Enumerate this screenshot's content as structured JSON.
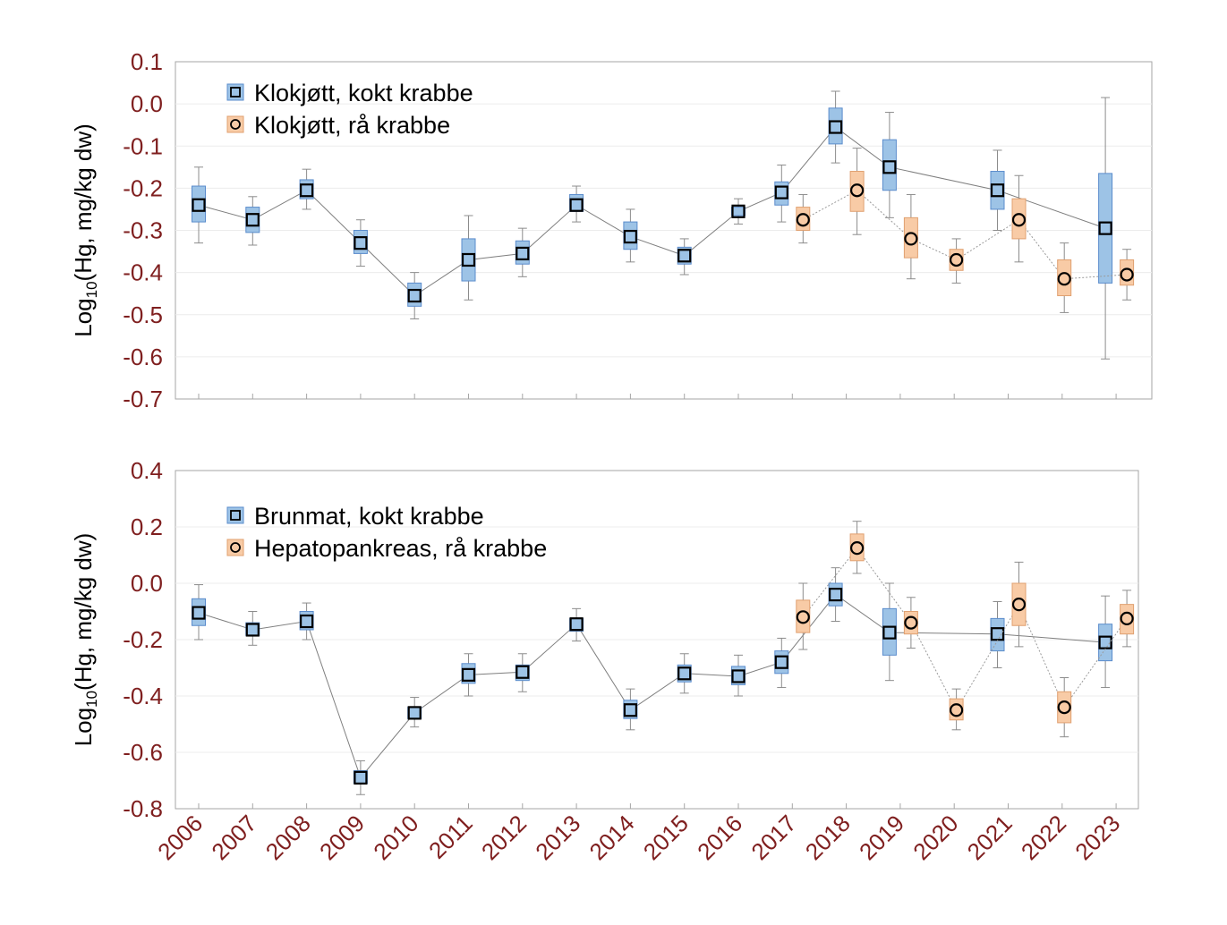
{
  "chart_data": [
    {
      "type": "box",
      "ylabel_main": "Log",
      "ylabel_sub": "10",
      "ylabel_rest": "(Hg, mg/kg dw)",
      "ylim": [
        -0.7,
        0.1
      ],
      "yticks": [
        "0.1",
        "0.0",
        "-0.1",
        "-0.2",
        "-0.3",
        "-0.4",
        "-0.5",
        "-0.6",
        "-0.7"
      ],
      "grid": true,
      "legend_placement": "top-left",
      "colors": {
        "box_blue": "#9dc3e6",
        "box_orange": "#f8cba6",
        "tick": "#7f1f1f"
      },
      "series": [
        {
          "name": "Klokjøtt, kokt krabbe",
          "marker": "square",
          "points": [
            {
              "year": 2006,
              "median": -0.24,
              "q1": -0.28,
              "q3": -0.195,
              "min": -0.33,
              "max": -0.15
            },
            {
              "year": 2007,
              "median": -0.275,
              "q1": -0.305,
              "q3": -0.245,
              "min": -0.335,
              "max": -0.22
            },
            {
              "year": 2008,
              "median": -0.205,
              "q1": -0.225,
              "q3": -0.18,
              "min": -0.25,
              "max": -0.155
            },
            {
              "year": 2009,
              "median": -0.33,
              "q1": -0.355,
              "q3": -0.3,
              "min": -0.385,
              "max": -0.275
            },
            {
              "year": 2010,
              "median": -0.455,
              "q1": -0.48,
              "q3": -0.425,
              "min": -0.51,
              "max": -0.4
            },
            {
              "year": 2011,
              "median": -0.37,
              "q1": -0.42,
              "q3": -0.32,
              "min": -0.465,
              "max": -0.265
            },
            {
              "year": 2012,
              "median": -0.355,
              "q1": -0.38,
              "q3": -0.325,
              "min": -0.41,
              "max": -0.295
            },
            {
              "year": 2013,
              "median": -0.24,
              "q1": -0.255,
              "q3": -0.215,
              "min": -0.28,
              "max": -0.195
            },
            {
              "year": 2014,
              "median": -0.315,
              "q1": -0.345,
              "q3": -0.28,
              "min": -0.375,
              "max": -0.25
            },
            {
              "year": 2015,
              "median": -0.36,
              "q1": -0.38,
              "q3": -0.34,
              "min": -0.405,
              "max": -0.32
            },
            {
              "year": 2016,
              "median": -0.255,
              "q1": -0.265,
              "q3": -0.245,
              "min": -0.285,
              "max": -0.225
            },
            {
              "year": 2017,
              "median": -0.21,
              "q1": -0.24,
              "q3": -0.185,
              "min": -0.28,
              "max": -0.145
            },
            {
              "year": 2018,
              "median": -0.055,
              "q1": -0.095,
              "q3": -0.01,
              "min": -0.14,
              "max": 0.03
            },
            {
              "year": 2019,
              "median": -0.15,
              "q1": -0.205,
              "q3": -0.085,
              "min": -0.27,
              "max": -0.02
            },
            {
              "year": 2021,
              "median": -0.205,
              "q1": -0.25,
              "q3": -0.16,
              "min": -0.3,
              "max": -0.11
            },
            {
              "year": 2023,
              "median": -0.295,
              "q1": -0.425,
              "q3": -0.165,
              "min": -0.605,
              "max": 0.015
            }
          ]
        },
        {
          "name": "Klokjøtt, rå krabbe",
          "marker": "circle",
          "points": [
            {
              "year": 2017,
              "median": -0.275,
              "q1": -0.3,
              "q3": -0.245,
              "min": -0.33,
              "max": -0.215
            },
            {
              "year": 2018,
              "median": -0.205,
              "q1": -0.255,
              "q3": -0.16,
              "min": -0.31,
              "max": -0.105
            },
            {
              "year": 2019,
              "median": -0.32,
              "q1": -0.365,
              "q3": -0.27,
              "min": -0.415,
              "max": -0.215
            },
            {
              "year": 2020,
              "median": -0.37,
              "q1": -0.395,
              "q3": -0.345,
              "min": -0.425,
              "max": -0.32
            },
            {
              "year": 2021,
              "median": -0.275,
              "q1": -0.32,
              "q3": -0.225,
              "min": -0.375,
              "max": -0.17
            },
            {
              "year": 2022,
              "median": -0.415,
              "q1": -0.455,
              "q3": -0.37,
              "min": -0.495,
              "max": -0.33
            },
            {
              "year": 2023,
              "median": -0.405,
              "q1": -0.43,
              "q3": -0.37,
              "min": -0.465,
              "max": -0.345
            }
          ]
        }
      ]
    },
    {
      "type": "box",
      "ylabel_main": "Log",
      "ylabel_sub": "10",
      "ylabel_rest": "(Hg, mg/kg dw)",
      "ylim": [
        -0.8,
        0.4
      ],
      "yticks": [
        "0.4",
        "0.2",
        "0.0",
        "-0.2",
        "-0.4",
        "-0.6",
        "-0.8"
      ],
      "xticks": [
        "2006",
        "2007",
        "2008",
        "2009",
        "2010",
        "2011",
        "2012",
        "2013",
        "2014",
        "2015",
        "2016",
        "2017",
        "2018",
        "2019",
        "2020",
        "2021",
        "2022",
        "2023"
      ],
      "grid": true,
      "legend_placement": "top-left",
      "series": [
        {
          "name": "Brunmat, kokt krabbe",
          "marker": "square",
          "points": [
            {
              "year": 2006,
              "median": -0.105,
              "q1": -0.15,
              "q3": -0.055,
              "min": -0.2,
              "max": -0.005
            },
            {
              "year": 2007,
              "median": -0.165,
              "q1": -0.185,
              "q3": -0.14,
              "min": -0.22,
              "max": -0.1
            },
            {
              "year": 2008,
              "median": -0.135,
              "q1": -0.165,
              "q3": -0.1,
              "min": -0.2,
              "max": -0.07
            },
            {
              "year": 2009,
              "median": -0.69,
              "q1": -0.71,
              "q3": -0.665,
              "min": -0.75,
              "max": -0.63
            },
            {
              "year": 2010,
              "median": -0.46,
              "q1": -0.48,
              "q3": -0.44,
              "min": -0.51,
              "max": -0.405
            },
            {
              "year": 2011,
              "median": -0.325,
              "q1": -0.355,
              "q3": -0.285,
              "min": -0.4,
              "max": -0.25
            },
            {
              "year": 2012,
              "median": -0.315,
              "q1": -0.345,
              "q3": -0.29,
              "min": -0.385,
              "max": -0.25
            },
            {
              "year": 2013,
              "median": -0.145,
              "q1": -0.17,
              "q3": -0.125,
              "min": -0.205,
              "max": -0.09
            },
            {
              "year": 2014,
              "median": -0.45,
              "q1": -0.48,
              "q3": -0.415,
              "min": -0.52,
              "max": -0.375
            },
            {
              "year": 2015,
              "median": -0.32,
              "q1": -0.35,
              "q3": -0.29,
              "min": -0.39,
              "max": -0.25
            },
            {
              "year": 2016,
              "median": -0.33,
              "q1": -0.36,
              "q3": -0.295,
              "min": -0.4,
              "max": -0.255
            },
            {
              "year": 2017,
              "median": -0.28,
              "q1": -0.32,
              "q3": -0.24,
              "min": -0.37,
              "max": -0.195
            },
            {
              "year": 2018,
              "median": -0.04,
              "q1": -0.08,
              "q3": 0.0,
              "min": -0.135,
              "max": 0.055
            },
            {
              "year": 2019,
              "median": -0.175,
              "q1": -0.255,
              "q3": -0.09,
              "min": -0.345,
              "max": 0.0
            },
            {
              "year": 2021,
              "median": -0.18,
              "q1": -0.24,
              "q3": -0.125,
              "min": -0.3,
              "max": -0.065
            },
            {
              "year": 2023,
              "median": -0.21,
              "q1": -0.275,
              "q3": -0.145,
              "min": -0.37,
              "max": -0.045
            }
          ]
        },
        {
          "name": "Hepatopankreas, rå krabbe",
          "marker": "circle",
          "points": [
            {
              "year": 2017,
              "median": -0.12,
              "q1": -0.175,
              "q3": -0.06,
              "min": -0.235,
              "max": 0.0
            },
            {
              "year": 2018,
              "median": 0.125,
              "q1": 0.08,
              "q3": 0.175,
              "min": 0.035,
              "max": 0.22
            },
            {
              "year": 2019,
              "median": -0.14,
              "q1": -0.18,
              "q3": -0.1,
              "min": -0.23,
              "max": -0.05
            },
            {
              "year": 2020,
              "median": -0.45,
              "q1": -0.485,
              "q3": -0.41,
              "min": -0.52,
              "max": -0.375
            },
            {
              "year": 2021,
              "median": -0.075,
              "q1": -0.15,
              "q3": 0.0,
              "min": -0.225,
              "max": 0.075
            },
            {
              "year": 2022,
              "median": -0.44,
              "q1": -0.495,
              "q3": -0.385,
              "min": -0.545,
              "max": -0.335
            },
            {
              "year": 2023,
              "median": -0.125,
              "q1": -0.18,
              "q3": -0.075,
              "min": -0.225,
              "max": -0.025
            }
          ]
        }
      ]
    }
  ]
}
